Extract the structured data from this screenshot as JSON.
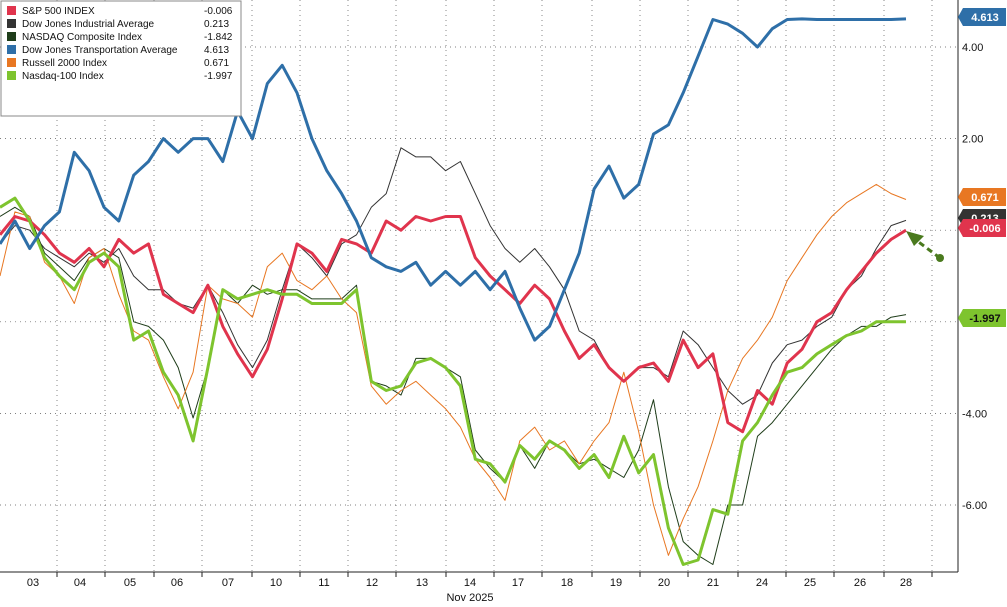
{
  "chart_data": {
    "type": "line",
    "xlabel": "Nov 2025",
    "x_ticks": [
      "03",
      "04",
      "05",
      "06",
      "07",
      "10",
      "11",
      "12",
      "13",
      "14",
      "17",
      "18",
      "19",
      "20",
      "21",
      "24",
      "25",
      "26",
      "28"
    ],
    "y_ticks": [
      4.0,
      2.0,
      -4.0,
      -6.0
    ],
    "y_tick_labels": [
      "4.00",
      "2.00",
      "-4.00",
      "-6.00"
    ],
    "ylim": [
      -7.8,
      5.0
    ],
    "grid": true,
    "legend_position": "top-left",
    "series": [
      {
        "name": "S&P 500 INDEX",
        "last_value": "-0.006",
        "color": "#e0344d",
        "tag_text_color": "#ffffff",
        "line_width": 3,
        "values": [
          -0.1,
          0.3,
          0.2,
          -0.1,
          -0.5,
          -0.7,
          -0.4,
          -0.8,
          -0.2,
          -0.5,
          -0.3,
          -1.4,
          -1.6,
          -1.8,
          -1.2,
          -2.1,
          -2.7,
          -3.2,
          -2.6,
          -1.5,
          -0.3,
          -0.5,
          -0.9,
          -0.2,
          -0.3,
          -0.5,
          0.2,
          0.0,
          0.3,
          0.2,
          0.3,
          0.3,
          -0.6,
          -1.0,
          -1.3,
          -1.6,
          -1.2,
          -1.5,
          -2.2,
          -2.8,
          -2.5,
          -3.0,
          -3.3,
          -3.0,
          -2.9,
          -3.3,
          -2.4,
          -3.0,
          -2.7,
          -4.2,
          -4.4,
          -3.5,
          -3.8,
          -2.9,
          -2.6,
          -2.0,
          -1.8,
          -1.3,
          -0.9,
          -0.5,
          -0.2,
          0.0
        ],
        "base": true
      },
      {
        "name": "Dow Jones Industrial Average",
        "last_value": "0.213",
        "color": "#333333",
        "tag_text_color": "#ffffff",
        "line_width": 1,
        "values": [
          -0.3,
          0.1,
          0.0,
          -0.4,
          -0.6,
          -0.8,
          -0.5,
          -0.7,
          -0.4,
          -1.0,
          -1.3,
          -1.3,
          -1.6,
          -1.7,
          -1.2,
          -1.8,
          -2.5,
          -3.0,
          -2.4,
          -1.3,
          -0.3,
          -0.6,
          -1.0,
          -0.3,
          -0.1,
          0.5,
          0.8,
          1.8,
          1.6,
          1.6,
          1.3,
          1.5,
          0.8,
          0.1,
          -0.4,
          -0.7,
          -0.4,
          -0.8,
          -1.3,
          -2.2,
          -2.4,
          -3.0,
          -3.3,
          -3.0,
          -3.0,
          -3.2,
          -2.2,
          -2.5,
          -3.0,
          -3.5,
          -3.8,
          -3.6,
          -2.9,
          -2.5,
          -2.4,
          -2.1,
          -1.9,
          -1.3,
          -1.0,
          -0.4,
          0.1,
          0.213
        ],
        "base": false
      },
      {
        "name": "NASDAQ Composite Index",
        "last_value": "-1.842",
        "color": "#1f3d1a",
        "tag_text_color": "#ffffff",
        "line_width": 1,
        "values": [
          0.3,
          0.5,
          0.3,
          -0.5,
          -0.8,
          -1.1,
          -0.6,
          -0.4,
          -0.6,
          -2.0,
          -2.1,
          -2.4,
          -3.0,
          -4.1,
          -3.0,
          -1.3,
          -1.6,
          -1.2,
          -1.4,
          -1.3,
          -1.3,
          -1.5,
          -1.5,
          -1.5,
          -1.2,
          -3.3,
          -3.4,
          -3.6,
          -2.8,
          -2.8,
          -3.0,
          -3.2,
          -4.8,
          -5.2,
          -5.5,
          -4.7,
          -5.2,
          -4.6,
          -4.8,
          -5.1,
          -5.0,
          -5.2,
          -5.4,
          -4.8,
          -3.7,
          -5.6,
          -6.8,
          -7.1,
          -7.3,
          -6.0,
          -6.0,
          -4.5,
          -4.2,
          -3.8,
          -3.4,
          -3.0,
          -2.6,
          -2.3,
          -2.1,
          -2.1,
          -1.9,
          -1.842
        ],
        "base": false
      },
      {
        "name": "Dow Jones Transportation Average",
        "last_value": "4.613",
        "color": "#2e6fa8",
        "tag_text_color": "#ffffff",
        "line_width": 3,
        "values": [
          -0.3,
          0.2,
          -0.4,
          0.1,
          0.4,
          1.7,
          1.3,
          0.5,
          0.2,
          1.2,
          1.5,
          2.0,
          1.7,
          2.0,
          2.0,
          1.5,
          2.6,
          2.0,
          3.2,
          3.6,
          3.0,
          2.0,
          1.3,
          0.8,
          0.2,
          -0.6,
          -0.8,
          -0.9,
          -0.7,
          -1.2,
          -0.9,
          -1.2,
          -0.9,
          -1.3,
          -0.9,
          -1.7,
          -2.4,
          -2.1,
          -1.3,
          -0.5,
          0.9,
          1.4,
          0.7,
          1.0,
          2.1,
          2.3,
          3.0,
          3.8,
          4.6,
          4.5,
          4.3,
          4.0,
          4.4,
          4.6,
          4.613,
          4.6,
          4.6,
          4.6,
          4.6,
          4.6,
          4.6,
          4.613
        ],
        "base": false
      },
      {
        "name": "Russell 2000 Index",
        "last_value": "0.671",
        "color": "#e87722",
        "tag_text_color": "#ffffff",
        "line_width": 1,
        "values": [
          -1.0,
          0.4,
          0.3,
          -0.7,
          -1.0,
          -1.6,
          -0.6,
          -0.4,
          -1.4,
          -2.2,
          -2.4,
          -3.2,
          -3.9,
          -3.1,
          -1.2,
          -1.5,
          -1.6,
          -1.9,
          -0.8,
          -0.5,
          -1.1,
          -1.3,
          -1.0,
          -1.5,
          -1.8,
          -3.4,
          -3.8,
          -3.5,
          -3.3,
          -3.6,
          -3.9,
          -4.3,
          -5.0,
          -5.4,
          -5.9,
          -4.6,
          -4.3,
          -4.8,
          -4.6,
          -5.1,
          -4.6,
          -4.2,
          -3.1,
          -4.4,
          -6.0,
          -7.1,
          -6.3,
          -5.6,
          -4.6,
          -3.5,
          -2.8,
          -2.4,
          -1.9,
          -1.1,
          -0.6,
          -0.1,
          0.3,
          0.6,
          0.8,
          1.0,
          0.8,
          0.671
        ],
        "base": false
      },
      {
        "name": "Nasdaq-100 Index",
        "last_value": "-1.997",
        "color": "#7ec42e",
        "tag_text_color": "#111111",
        "line_width": 3,
        "values": [
          0.5,
          0.7,
          0.2,
          -0.6,
          -1.0,
          -1.3,
          -0.7,
          -0.5,
          -0.8,
          -2.4,
          -2.2,
          -3.1,
          -3.6,
          -4.6,
          -3.0,
          -1.3,
          -1.5,
          -1.4,
          -1.3,
          -1.4,
          -1.4,
          -1.6,
          -1.6,
          -1.6,
          -1.3,
          -3.3,
          -3.5,
          -3.4,
          -2.9,
          -2.8,
          -3.0,
          -3.4,
          -5.0,
          -5.1,
          -5.5,
          -4.7,
          -5.0,
          -4.6,
          -4.8,
          -5.2,
          -4.9,
          -5.4,
          -4.5,
          -5.3,
          -4.9,
          -6.5,
          -7.3,
          -7.2,
          -6.1,
          -6.2,
          -4.6,
          -4.2,
          -3.6,
          -3.1,
          -3.0,
          -2.7,
          -2.5,
          -2.3,
          -2.2,
          -2.0,
          -2.0,
          -1.997
        ],
        "base": false
      }
    ]
  },
  "colors": {
    "grid": "#555555",
    "axis": "#222222",
    "arrow": "#4a7a1e"
  }
}
